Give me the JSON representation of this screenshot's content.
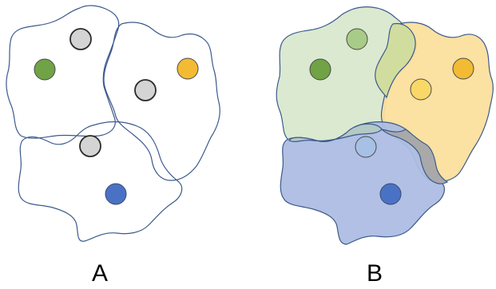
{
  "panels": {
    "a": {
      "label": "A"
    },
    "b": {
      "label": "B"
    }
  },
  "colors": {
    "outline": "#3c5a8c",
    "green_point": "#70a345",
    "yellow_point": "#f2bb33",
    "blue_point": "#4a72c4",
    "gray_point": "#d4d4d4",
    "green_region": "#d8e8cd",
    "yellow_region": "#fbdf9d",
    "blue_region": "#adbde3",
    "overlap_green_yellow": "#d1dd9e",
    "overlap_yellow_blue": "#a9a9a9",
    "overlap_green_blue": "#b4c8c4",
    "light_green_point": "#a8cc87",
    "light_yellow_point": "#f9d867",
    "light_blue_point": "#a6c1e5"
  }
}
